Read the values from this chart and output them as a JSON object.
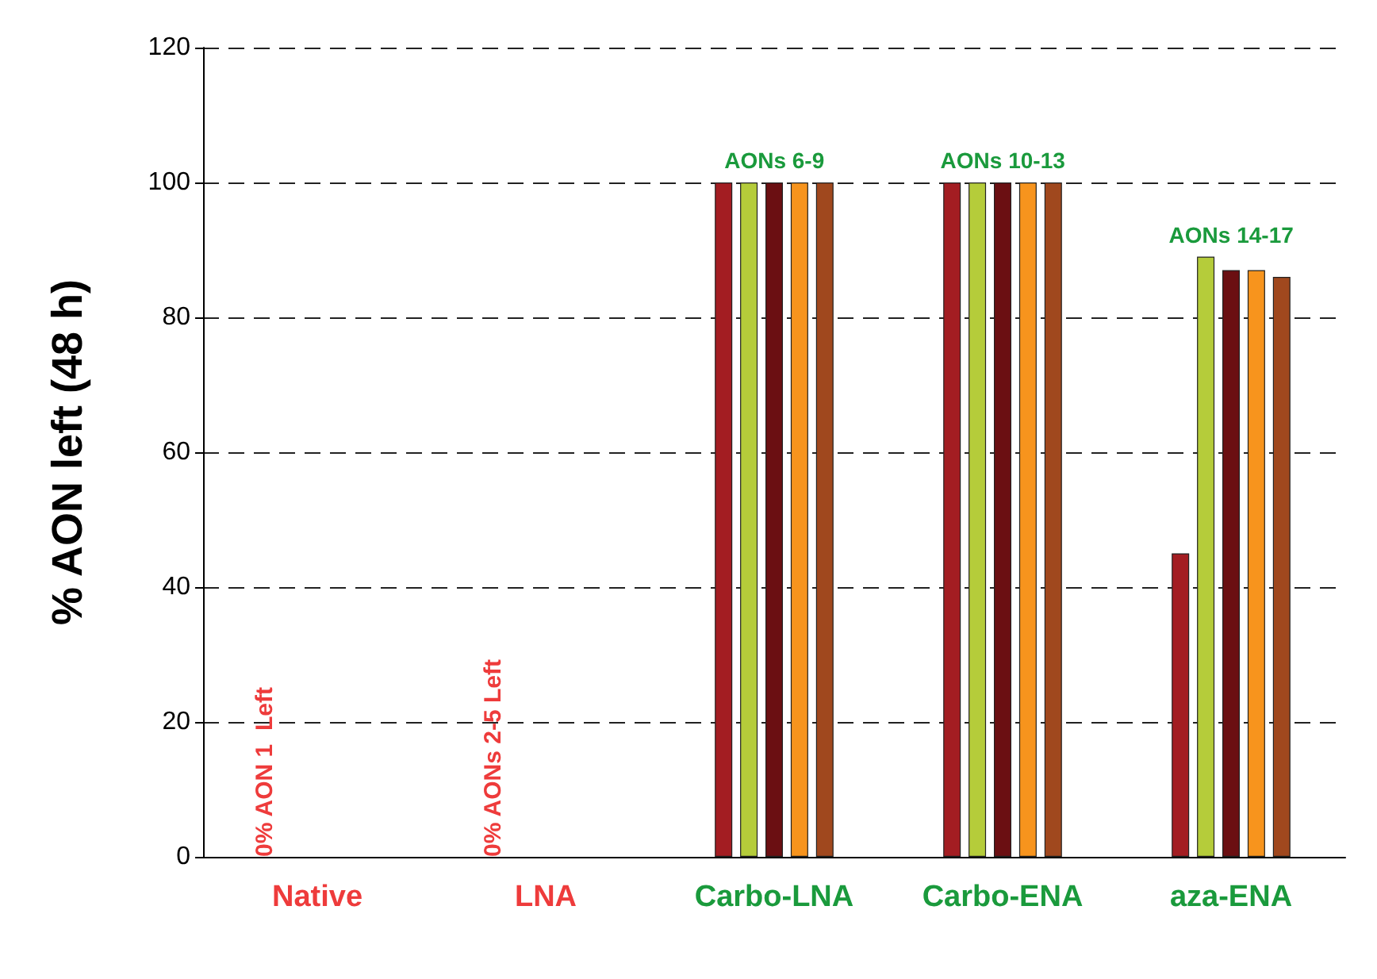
{
  "chart_data": {
    "type": "bar",
    "ylabel": "% AON left (48 h)",
    "categories": [
      "Native",
      "LNA",
      "Carbo-LNA",
      "Carbo-ENA",
      "aza-ENA"
    ],
    "series": [
      {
        "color": "#a31d22",
        "values": [
          null,
          null,
          100,
          100,
          45
        ]
      },
      {
        "color": "#b5cc3a",
        "values": [
          null,
          null,
          100,
          100,
          89
        ]
      },
      {
        "color": "#6b0f12",
        "values": [
          null,
          null,
          100,
          100,
          87
        ]
      },
      {
        "color": "#f7941d",
        "values": [
          null,
          null,
          100,
          100,
          87
        ]
      },
      {
        "color": "#a0481e",
        "values": [
          null,
          null,
          100,
          100,
          86
        ]
      }
    ],
    "ylim": [
      0,
      120
    ],
    "yticks": [
      0,
      20,
      40,
      60,
      80,
      100,
      120
    ],
    "grid": "y",
    "annotations": [
      "0% AON 1  Left",
      "0% AONs 2-5 Left",
      "AONs 6-9",
      "AONs 10-13",
      "AONs 14-17"
    ]
  }
}
